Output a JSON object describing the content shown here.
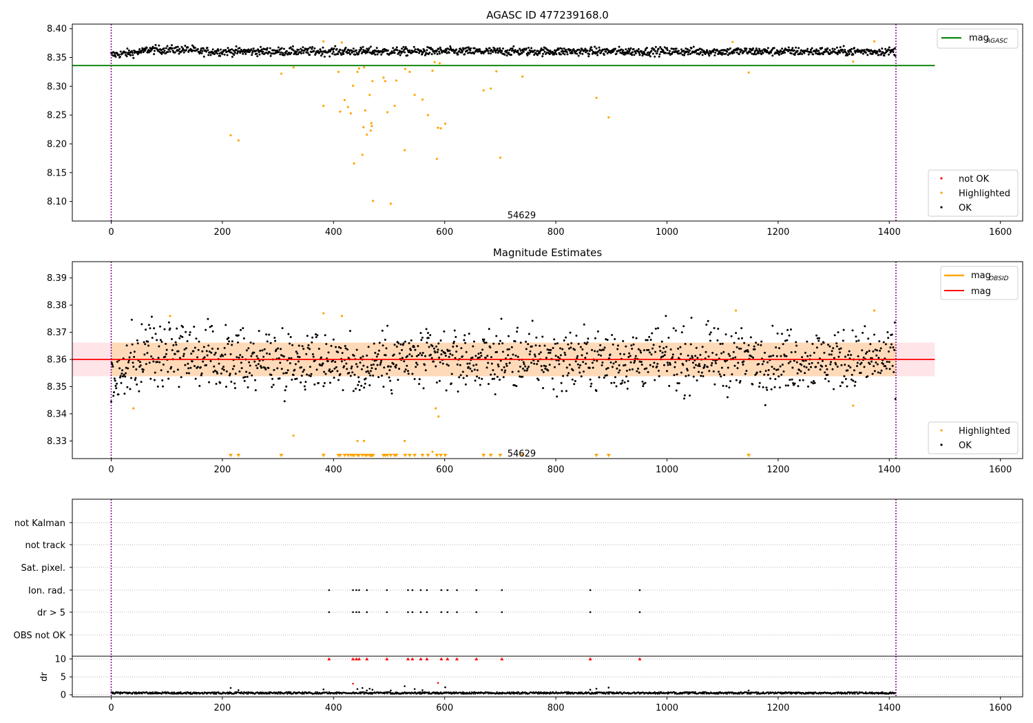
{
  "figure": {
    "title1": "AGASC ID 477239168.0",
    "title2": "Magnitude Estimates",
    "obsid_label": "54629"
  },
  "colors": {
    "ok": "#000000",
    "highlighted": "#ffa500",
    "not_ok": "#ff0000",
    "mag_agasc": "#008000",
    "mag_obsid": "#ffa500",
    "mag": "#ff0000",
    "band_inner": "#ffdab9",
    "band_outer": "#ffe4e8",
    "vline": "#800080",
    "grid": "#b0b0b0"
  },
  "chart_data": [
    {
      "type": "scatter",
      "title": "AGASC ID 477239168.0",
      "xlim": [
        -70,
        1640
      ],
      "ylim": [
        8.066,
        8.408
      ],
      "xticks": [
        0,
        200,
        400,
        600,
        800,
        1000,
        1200,
        1400,
        1600
      ],
      "yticks": [
        8.1,
        8.15,
        8.2,
        8.25,
        8.3,
        8.35,
        8.4
      ],
      "ytick_labels": [
        "8.10",
        "8.15",
        "8.20",
        "8.25",
        "8.30",
        "8.35",
        "8.40"
      ],
      "obs_bounds": [
        0,
        1412
      ],
      "annotation": {
        "text": "54629",
        "x": 705,
        "y": 8.077
      },
      "lines": [
        {
          "name": "mag",
          "sub": "AGASC",
          "y": 8.336,
          "x": [
            -70,
            1482
          ],
          "color": "#008000"
        }
      ],
      "ok_band": {
        "mean": 8.3605,
        "spread": 0.0065,
        "n": 1412
      },
      "highlighted": [
        {
          "x": 215,
          "y": 8.215
        },
        {
          "x": 229,
          "y": 8.206
        },
        {
          "x": 306,
          "y": 8.322
        },
        {
          "x": 328,
          "y": 8.333
        },
        {
          "x": 382,
          "y": 8.266
        },
        {
          "x": 382,
          "y": 8.378
        },
        {
          "x": 409,
          "y": 8.325
        },
        {
          "x": 412,
          "y": 8.256
        },
        {
          "x": 415,
          "y": 8.376
        },
        {
          "x": 420,
          "y": 8.276
        },
        {
          "x": 426,
          "y": 8.264
        },
        {
          "x": 431,
          "y": 8.253
        },
        {
          "x": 435,
          "y": 8.301
        },
        {
          "x": 437,
          "y": 8.166
        },
        {
          "x": 443,
          "y": 8.325
        },
        {
          "x": 446,
          "y": 8.331
        },
        {
          "x": 452,
          "y": 8.181
        },
        {
          "x": 454,
          "y": 8.229
        },
        {
          "x": 455,
          "y": 8.333
        },
        {
          "x": 457,
          "y": 8.258
        },
        {
          "x": 460,
          "y": 8.216
        },
        {
          "x": 465,
          "y": 8.285
        },
        {
          "x": 467,
          "y": 8.223
        },
        {
          "x": 468,
          "y": 8.236
        },
        {
          "x": 469,
          "y": 8.231
        },
        {
          "x": 470,
          "y": 8.309
        },
        {
          "x": 471,
          "y": 8.101
        },
        {
          "x": 490,
          "y": 8.315
        },
        {
          "x": 493,
          "y": 8.309
        },
        {
          "x": 497,
          "y": 8.255
        },
        {
          "x": 503,
          "y": 8.096
        },
        {
          "x": 510,
          "y": 8.266
        },
        {
          "x": 513,
          "y": 8.31
        },
        {
          "x": 528,
          "y": 8.189
        },
        {
          "x": 529,
          "y": 8.33
        },
        {
          "x": 537,
          "y": 8.325
        },
        {
          "x": 546,
          "y": 8.285
        },
        {
          "x": 560,
          "y": 8.277
        },
        {
          "x": 570,
          "y": 8.25
        },
        {
          "x": 578,
          "y": 8.327
        },
        {
          "x": 582,
          "y": 8.342
        },
        {
          "x": 586,
          "y": 8.174
        },
        {
          "x": 588,
          "y": 8.228
        },
        {
          "x": 591,
          "y": 8.34
        },
        {
          "x": 593,
          "y": 8.227
        },
        {
          "x": 601,
          "y": 8.235
        },
        {
          "x": 670,
          "y": 8.293
        },
        {
          "x": 683,
          "y": 8.296
        },
        {
          "x": 693,
          "y": 8.326
        },
        {
          "x": 700,
          "y": 8.176
        },
        {
          "x": 740,
          "y": 8.317
        },
        {
          "x": 873,
          "y": 8.28
        },
        {
          "x": 895,
          "y": 8.246
        },
        {
          "x": 1118,
          "y": 8.377
        },
        {
          "x": 1147,
          "y": 8.324
        },
        {
          "x": 1335,
          "y": 8.343
        },
        {
          "x": 1373,
          "y": 8.378
        }
      ],
      "not_ok": [],
      "legend": [
        {
          "label": "mag",
          "sub": "AGASC",
          "kind": "line",
          "color": "#008000"
        },
        {
          "label": "not OK",
          "kind": "dot",
          "color": "#ff0000"
        },
        {
          "label": "Highlighted",
          "kind": "dot",
          "color": "#ffa500"
        },
        {
          "label": "OK",
          "kind": "dot",
          "color": "#000000"
        }
      ]
    },
    {
      "type": "scatter",
      "title": "Magnitude Estimates",
      "xlim": [
        -70,
        1640
      ],
      "ylim": [
        8.3235,
        8.396
      ],
      "xticks": [
        0,
        200,
        400,
        600,
        800,
        1000,
        1200,
        1400,
        1600
      ],
      "yticks": [
        8.33,
        8.34,
        8.35,
        8.36,
        8.37,
        8.38,
        8.39
      ],
      "ytick_labels": [
        "8.33",
        "8.34",
        "8.35",
        "8.36",
        "8.37",
        "8.38",
        "8.39"
      ],
      "obs_bounds": [
        0,
        1412
      ],
      "annotation": {
        "text": "54629",
        "x": 705,
        "y": 8.3255
      },
      "mag": 8.36,
      "mag_band_inner": [
        8.3538,
        8.3662
      ],
      "mag_band_outer": [
        8.3538,
        8.3662
      ],
      "band_x": [
        0,
        1482
      ],
      "outer_x": [
        -70,
        1482
      ],
      "ok_band": {
        "mean": 8.36,
        "spread": 0.0065,
        "n": 1412
      },
      "highlighted": [
        {
          "x": 40,
          "y": 8.342
        },
        {
          "x": 106,
          "y": 8.376
        },
        {
          "x": 328,
          "y": 8.332
        },
        {
          "x": 382,
          "y": 8.377
        },
        {
          "x": 415,
          "y": 8.376
        },
        {
          "x": 443,
          "y": 8.33
        },
        {
          "x": 455,
          "y": 8.33
        },
        {
          "x": 528,
          "y": 8.33
        },
        {
          "x": 578,
          "y": 8.326
        },
        {
          "x": 584,
          "y": 8.342
        },
        {
          "x": 589,
          "y": 8.339
        },
        {
          "x": 1124,
          "y": 8.378
        },
        {
          "x": 1335,
          "y": 8.343
        },
        {
          "x": 1373,
          "y": 8.378
        }
      ],
      "clipped_x": [
        215,
        229,
        306,
        382,
        409,
        412,
        420,
        426,
        431,
        435,
        437,
        443,
        446,
        452,
        457,
        460,
        465,
        467,
        468,
        469,
        471,
        490,
        493,
        497,
        503,
        510,
        513,
        529,
        537,
        546,
        560,
        570,
        586,
        593,
        601,
        670,
        683,
        700,
        740,
        873,
        895,
        1147
      ],
      "legend": [
        {
          "label": "mag",
          "sub": "OBSID",
          "kind": "line",
          "color": "#ffa500"
        },
        {
          "label": "mag",
          "kind": "line",
          "color": "#ff0000"
        },
        {
          "label": "Highlighted",
          "kind": "dot",
          "color": "#ffa500"
        },
        {
          "label": "OK",
          "kind": "dot",
          "color": "#000000"
        }
      ]
    },
    {
      "type": "scatter",
      "xlim": [
        -70,
        1640
      ],
      "categories": [
        "not Kalman",
        "not track",
        "Sat. pixel.",
        "Ion. rad.",
        "dr > 5",
        "OBS not OK"
      ],
      "obs_bounds": [
        0,
        1412
      ],
      "flags": {
        "Ion. rad.": [
          392,
          435,
          441,
          446,
          460,
          496,
          534,
          542,
          557,
          568,
          594,
          605,
          622,
          657,
          703,
          862,
          951
        ],
        "dr > 5": [
          392,
          435,
          441,
          446,
          460,
          496,
          534,
          542,
          557,
          568,
          594,
          605,
          622,
          657,
          703,
          862,
          951
        ]
      }
    },
    {
      "type": "scatter",
      "xlim": [
        -70,
        1640
      ],
      "ylim": [
        -0.3,
        10.6
      ],
      "ylabel": "dr",
      "yticks": [
        0,
        5,
        10
      ],
      "ytick_labels": [
        "0",
        "5",
        "10"
      ],
      "xticks": [
        0,
        200,
        400,
        600,
        800,
        1000,
        1200,
        1400,
        1600
      ],
      "obs_bounds": [
        0,
        1412
      ],
      "clipped_x": [
        392,
        435,
        441,
        446,
        460,
        496,
        534,
        542,
        557,
        568,
        594,
        605,
        622,
        657,
        703,
        862,
        951
      ],
      "red_points": [
        {
          "x": 435,
          "y": 3.1
        },
        {
          "x": 588,
          "y": 3.3
        }
      ],
      "spikes": [
        {
          "x": 215,
          "y": 1.9
        },
        {
          "x": 229,
          "y": 1.3
        },
        {
          "x": 382,
          "y": 1.5
        },
        {
          "x": 443,
          "y": 1.6
        },
        {
          "x": 452,
          "y": 1.9
        },
        {
          "x": 460,
          "y": 1.2
        },
        {
          "x": 465,
          "y": 1.7
        },
        {
          "x": 470,
          "y": 1.4
        },
        {
          "x": 503,
          "y": 1.2
        },
        {
          "x": 528,
          "y": 2.4
        },
        {
          "x": 546,
          "y": 1.6
        },
        {
          "x": 560,
          "y": 1.3
        },
        {
          "x": 601,
          "y": 2.1
        },
        {
          "x": 862,
          "y": 1.4
        },
        {
          "x": 873,
          "y": 1.7
        },
        {
          "x": 895,
          "y": 2.0
        },
        {
          "x": 1147,
          "y": 1.2
        }
      ]
    }
  ]
}
